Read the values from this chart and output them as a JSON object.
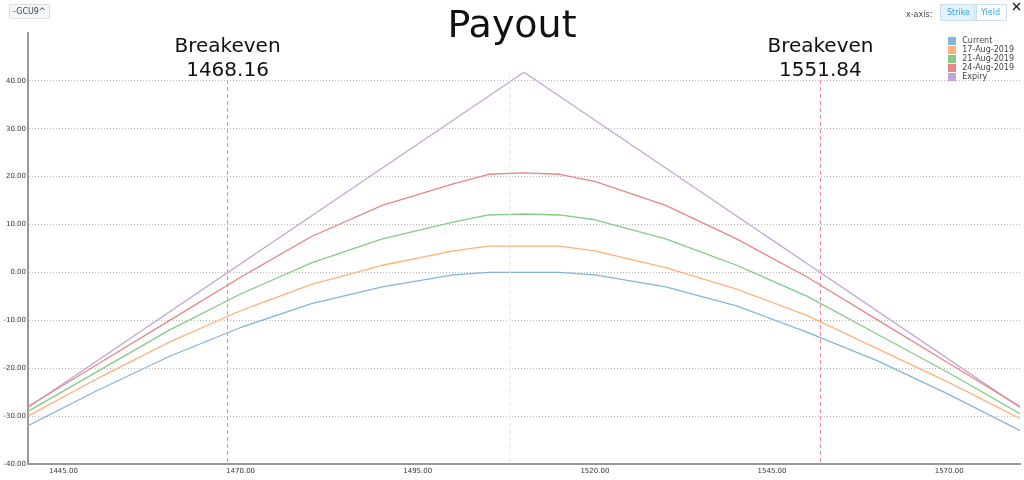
{
  "chart_data": {
    "type": "line",
    "title": "Payout",
    "x": [
      1440,
      1450,
      1460,
      1470,
      1480,
      1490,
      1500,
      1505,
      1510,
      1515,
      1520,
      1530,
      1540,
      1550,
      1560,
      1570,
      1580
    ],
    "series": [
      {
        "name": "Current",
        "color": "#84b4de",
        "values": [
          -32,
          -24.5,
          -17.5,
          -11.5,
          -6.5,
          -3,
          -0.5,
          0,
          0,
          0,
          -0.5,
          -3,
          -7,
          -12.5,
          -18.5,
          -25.5,
          -33
        ]
      },
      {
        "name": "17-Aug-2019",
        "color": "#ffb27a",
        "values": [
          -30,
          -22,
          -14.5,
          -8,
          -2.5,
          1.5,
          4.5,
          5.5,
          5.5,
          5.5,
          4.5,
          1,
          -3.5,
          -9,
          -16,
          -23,
          -30.5
        ]
      },
      {
        "name": "21-Aug-2019",
        "color": "#84cc84",
        "values": [
          -29,
          -20.5,
          -12,
          -4.5,
          2,
          7,
          10.5,
          12,
          12.2,
          12,
          11,
          7,
          1.5,
          -5,
          -13,
          -21,
          -29.5
        ]
      },
      {
        "name": "24-Aug-2019",
        "color": "#e98585",
        "values": [
          -28,
          -19,
          -10,
          -1,
          7.5,
          14,
          18.5,
          20.5,
          20.8,
          20.5,
          19,
          14,
          7,
          -1,
          -10,
          -19,
          -28
        ]
      },
      {
        "name": "Expiry",
        "color": "#c3a6dc",
        "x": [
          1440,
          1510,
          1580
        ],
        "values": [
          -28.2,
          41.8,
          -28.2
        ]
      }
    ],
    "xlim": [
      1440,
      1580
    ],
    "xticks": [
      {
        "value": 1445,
        "label": "1445.00"
      },
      {
        "value": 1470,
        "label": "1470.00"
      },
      {
        "value": 1495,
        "label": "1495.00"
      },
      {
        "value": 1520,
        "label": "1520.00"
      },
      {
        "value": 1545,
        "label": "1545.00"
      },
      {
        "value": 1570,
        "label": "1570.00"
      }
    ],
    "ylim": [
      -40,
      50
    ],
    "yticks": [
      {
        "value": -40,
        "label": "-40.00"
      },
      {
        "value": -30,
        "label": "-30.00"
      },
      {
        "value": -20,
        "label": "-20.00"
      },
      {
        "value": -10,
        "label": "-10.00"
      },
      {
        "value": 0,
        "label": "0.00"
      },
      {
        "value": 10,
        "label": "10.00"
      },
      {
        "value": 20,
        "label": "20.00"
      },
      {
        "value": 30,
        "label": "30.00"
      },
      {
        "value": 40,
        "label": "40.00"
      }
    ],
    "grid": "y",
    "legend": "top right",
    "marker": "none",
    "line_style": "solid",
    "ref_lines": [
      {
        "axis": "x",
        "value": 1468.16,
        "label": "Breakeven 1468.16",
        "color": "#e8889c",
        "line_style": "dashed"
      },
      {
        "axis": "x",
        "value": 1508,
        "color": "#f6dde3",
        "line_style": "dashed"
      },
      {
        "axis": "x",
        "value": 1551.84,
        "label": "Breakeven 1551.84",
        "color": "#e8889c",
        "line_style": "dashed"
      }
    ],
    "annotations": [
      "-GCU9^",
      "x-axis:",
      "Strike",
      "Yield"
    ]
  }
}
